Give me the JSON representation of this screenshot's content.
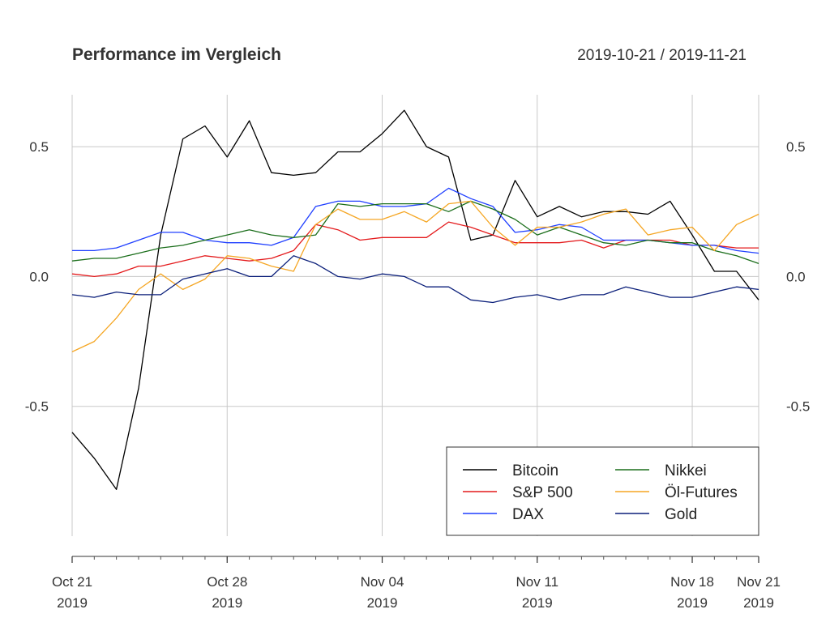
{
  "chart_data": {
    "type": "line",
    "title": "Performance im Vergleich",
    "date_range": "2019-10-21 / 2019-11-21",
    "xlim": [
      "2019-10-21",
      "2019-11-21"
    ],
    "ylim": [
      -1.0,
      0.7
    ],
    "y_ticks": [
      {
        "value": 0.5,
        "label": "0.5"
      },
      {
        "value": 0.0,
        "label": "0.0"
      },
      {
        "value": -0.5,
        "label": "-0.5"
      }
    ],
    "x_ticks": [
      {
        "date": "2019-10-21",
        "line1": "Oct 21",
        "line2": "2019"
      },
      {
        "date": "2019-10-28",
        "line1": "Oct 28",
        "line2": "2019"
      },
      {
        "date": "2019-11-04",
        "line1": "Nov 04",
        "line2": "2019"
      },
      {
        "date": "2019-11-11",
        "line1": "Nov 11",
        "line2": "2019"
      },
      {
        "date": "2019-11-18",
        "line1": "Nov 18",
        "line2": "2019"
      },
      {
        "date": "2019-11-21",
        "line1": "Nov 21",
        "line2": "2019"
      }
    ],
    "grid": true,
    "legend": {
      "position": "bottom-right",
      "columns": 2
    },
    "x": [
      "2019-10-21",
      "2019-10-22",
      "2019-10-23",
      "2019-10-24",
      "2019-10-25",
      "2019-10-26",
      "2019-10-27",
      "2019-10-28",
      "2019-10-29",
      "2019-10-30",
      "2019-10-31",
      "2019-11-01",
      "2019-11-02",
      "2019-11-03",
      "2019-11-04",
      "2019-11-05",
      "2019-11-06",
      "2019-11-07",
      "2019-11-08",
      "2019-11-09",
      "2019-11-10",
      "2019-11-11",
      "2019-11-12",
      "2019-11-13",
      "2019-11-14",
      "2019-11-15",
      "2019-11-16",
      "2019-11-17",
      "2019-11-18",
      "2019-11-19",
      "2019-11-20",
      "2019-11-21"
    ],
    "series": [
      {
        "name": "Bitcoin",
        "color": "#000000",
        "points": [
          [
            "2019-10-21",
            -0.6
          ],
          [
            "2019-10-22",
            -0.7
          ],
          [
            "2019-10-23",
            -0.82
          ],
          [
            "2019-10-24",
            -0.43
          ],
          [
            "2019-10-25",
            0.16
          ],
          [
            "2019-10-26",
            0.53
          ],
          [
            "2019-10-27",
            0.58
          ],
          [
            "2019-10-28",
            0.46
          ],
          [
            "2019-10-29",
            0.6
          ],
          [
            "2019-10-30",
            0.4
          ],
          [
            "2019-10-31",
            0.39
          ],
          [
            "2019-11-01",
            0.4
          ],
          [
            "2019-11-02",
            0.48
          ],
          [
            "2019-11-03",
            0.48
          ],
          [
            "2019-11-04",
            0.55
          ],
          [
            "2019-11-05",
            0.64
          ],
          [
            "2019-11-06",
            0.5
          ],
          [
            "2019-11-07",
            0.46
          ],
          [
            "2019-11-08",
            0.14
          ],
          [
            "2019-11-09",
            0.16
          ],
          [
            "2019-11-10",
            0.37
          ],
          [
            "2019-11-11",
            0.23
          ],
          [
            "2019-11-12",
            0.27
          ],
          [
            "2019-11-13",
            0.23
          ],
          [
            "2019-11-14",
            0.25
          ],
          [
            "2019-11-15",
            0.25
          ],
          [
            "2019-11-16",
            0.24
          ],
          [
            "2019-11-17",
            0.29
          ],
          [
            "2019-11-18",
            0.16
          ],
          [
            "2019-11-19",
            0.02
          ],
          [
            "2019-11-20",
            0.02
          ],
          [
            "2019-11-21",
            -0.09
          ]
        ]
      },
      {
        "name": "S&P 500",
        "color": "#e41a1c",
        "points": [
          [
            "2019-10-21",
            0.01
          ],
          [
            "2019-10-22",
            0.0
          ],
          [
            "2019-10-23",
            0.01
          ],
          [
            "2019-10-24",
            0.04
          ],
          [
            "2019-10-25",
            0.04
          ],
          [
            "2019-10-26",
            0.06
          ],
          [
            "2019-10-27",
            0.08
          ],
          [
            "2019-10-28",
            0.07
          ],
          [
            "2019-10-29",
            0.06
          ],
          [
            "2019-10-30",
            0.07
          ],
          [
            "2019-10-31",
            0.1
          ],
          [
            "2019-11-01",
            0.2
          ],
          [
            "2019-11-02",
            0.18
          ],
          [
            "2019-11-03",
            0.14
          ],
          [
            "2019-11-04",
            0.15
          ],
          [
            "2019-11-05",
            0.15
          ],
          [
            "2019-11-06",
            0.15
          ],
          [
            "2019-11-07",
            0.21
          ],
          [
            "2019-11-08",
            0.19
          ],
          [
            "2019-11-09",
            0.16
          ],
          [
            "2019-11-10",
            0.13
          ],
          [
            "2019-11-11",
            0.13
          ],
          [
            "2019-11-12",
            0.13
          ],
          [
            "2019-11-13",
            0.14
          ],
          [
            "2019-11-14",
            0.11
          ],
          [
            "2019-11-15",
            0.14
          ],
          [
            "2019-11-16",
            0.14
          ],
          [
            "2019-11-17",
            0.14
          ],
          [
            "2019-11-18",
            0.12
          ],
          [
            "2019-11-19",
            0.12
          ],
          [
            "2019-11-20",
            0.11
          ],
          [
            "2019-11-21",
            0.11
          ]
        ]
      },
      {
        "name": "DAX",
        "color": "#1f3fff",
        "points": [
          [
            "2019-10-21",
            0.1
          ],
          [
            "2019-10-22",
            0.1
          ],
          [
            "2019-10-23",
            0.11
          ],
          [
            "2019-10-24",
            0.14
          ],
          [
            "2019-10-25",
            0.17
          ],
          [
            "2019-10-26",
            0.17
          ],
          [
            "2019-10-27",
            0.14
          ],
          [
            "2019-10-28",
            0.13
          ],
          [
            "2019-10-29",
            0.13
          ],
          [
            "2019-10-30",
            0.12
          ],
          [
            "2019-10-31",
            0.15
          ],
          [
            "2019-11-01",
            0.27
          ],
          [
            "2019-11-02",
            0.29
          ],
          [
            "2019-11-03",
            0.29
          ],
          [
            "2019-11-04",
            0.27
          ],
          [
            "2019-11-05",
            0.27
          ],
          [
            "2019-11-06",
            0.28
          ],
          [
            "2019-11-07",
            0.34
          ],
          [
            "2019-11-08",
            0.3
          ],
          [
            "2019-11-09",
            0.27
          ],
          [
            "2019-11-10",
            0.17
          ],
          [
            "2019-11-11",
            0.18
          ],
          [
            "2019-11-12",
            0.2
          ],
          [
            "2019-11-13",
            0.19
          ],
          [
            "2019-11-14",
            0.14
          ],
          [
            "2019-11-15",
            0.14
          ],
          [
            "2019-11-16",
            0.14
          ],
          [
            "2019-11-17",
            0.13
          ],
          [
            "2019-11-18",
            0.12
          ],
          [
            "2019-11-19",
            0.12
          ],
          [
            "2019-11-20",
            0.1
          ],
          [
            "2019-11-21",
            0.09
          ]
        ]
      },
      {
        "name": "Nikkei",
        "color": "#1b6e1b",
        "points": [
          [
            "2019-10-21",
            0.06
          ],
          [
            "2019-10-22",
            0.07
          ],
          [
            "2019-10-23",
            0.07
          ],
          [
            "2019-10-24",
            0.09
          ],
          [
            "2019-10-25",
            0.11
          ],
          [
            "2019-10-26",
            0.12
          ],
          [
            "2019-10-27",
            0.14
          ],
          [
            "2019-10-28",
            0.16
          ],
          [
            "2019-10-29",
            0.18
          ],
          [
            "2019-10-30",
            0.16
          ],
          [
            "2019-10-31",
            0.15
          ],
          [
            "2019-11-01",
            0.16
          ],
          [
            "2019-11-02",
            0.28
          ],
          [
            "2019-11-03",
            0.27
          ],
          [
            "2019-11-04",
            0.28
          ],
          [
            "2019-11-05",
            0.28
          ],
          [
            "2019-11-06",
            0.28
          ],
          [
            "2019-11-07",
            0.25
          ],
          [
            "2019-11-08",
            0.29
          ],
          [
            "2019-11-09",
            0.26
          ],
          [
            "2019-11-10",
            0.22
          ],
          [
            "2019-11-11",
            0.16
          ],
          [
            "2019-11-12",
            0.19
          ],
          [
            "2019-11-13",
            0.16
          ],
          [
            "2019-11-14",
            0.13
          ],
          [
            "2019-11-15",
            0.12
          ],
          [
            "2019-11-16",
            0.14
          ],
          [
            "2019-11-17",
            0.13
          ],
          [
            "2019-11-18",
            0.13
          ],
          [
            "2019-11-19",
            0.1
          ],
          [
            "2019-11-20",
            0.08
          ],
          [
            "2019-11-21",
            0.05
          ]
        ]
      },
      {
        "name": "Öl-Futures",
        "color": "#f5a623",
        "points": [
          [
            "2019-10-21",
            -0.29
          ],
          [
            "2019-10-22",
            -0.25
          ],
          [
            "2019-10-23",
            -0.16
          ],
          [
            "2019-10-24",
            -0.05
          ],
          [
            "2019-10-25",
            0.01
          ],
          [
            "2019-10-26",
            -0.05
          ],
          [
            "2019-10-27",
            -0.01
          ],
          [
            "2019-10-28",
            0.08
          ],
          [
            "2019-10-29",
            0.07
          ],
          [
            "2019-10-30",
            0.04
          ],
          [
            "2019-10-31",
            0.02
          ],
          [
            "2019-11-01",
            0.2
          ],
          [
            "2019-11-02",
            0.26
          ],
          [
            "2019-11-03",
            0.22
          ],
          [
            "2019-11-04",
            0.22
          ],
          [
            "2019-11-05",
            0.25
          ],
          [
            "2019-11-06",
            0.21
          ],
          [
            "2019-11-07",
            0.28
          ],
          [
            "2019-11-08",
            0.29
          ],
          [
            "2019-11-09",
            0.19
          ],
          [
            "2019-11-10",
            0.12
          ],
          [
            "2019-11-11",
            0.19
          ],
          [
            "2019-11-12",
            0.19
          ],
          [
            "2019-11-13",
            0.21
          ],
          [
            "2019-11-14",
            0.24
          ],
          [
            "2019-11-15",
            0.26
          ],
          [
            "2019-11-16",
            0.16
          ],
          [
            "2019-11-17",
            0.18
          ],
          [
            "2019-11-18",
            0.19
          ],
          [
            "2019-11-19",
            0.1
          ],
          [
            "2019-11-20",
            0.2
          ],
          [
            "2019-11-21",
            0.24
          ]
        ]
      },
      {
        "name": "Gold",
        "color": "#0b1f7a",
        "points": [
          [
            "2019-10-21",
            -0.07
          ],
          [
            "2019-10-22",
            -0.08
          ],
          [
            "2019-10-23",
            -0.06
          ],
          [
            "2019-10-24",
            -0.07
          ],
          [
            "2019-10-25",
            -0.07
          ],
          [
            "2019-10-26",
            -0.01
          ],
          [
            "2019-10-27",
            0.01
          ],
          [
            "2019-10-28",
            0.03
          ],
          [
            "2019-10-29",
            0.0
          ],
          [
            "2019-10-30",
            0.0
          ],
          [
            "2019-10-31",
            0.08
          ],
          [
            "2019-11-01",
            0.05
          ],
          [
            "2019-11-02",
            0.0
          ],
          [
            "2019-11-03",
            -0.01
          ],
          [
            "2019-11-04",
            0.01
          ],
          [
            "2019-11-05",
            0.0
          ],
          [
            "2019-11-06",
            -0.04
          ],
          [
            "2019-11-07",
            -0.04
          ],
          [
            "2019-11-08",
            -0.09
          ],
          [
            "2019-11-09",
            -0.1
          ],
          [
            "2019-11-10",
            -0.08
          ],
          [
            "2019-11-11",
            -0.07
          ],
          [
            "2019-11-12",
            -0.09
          ],
          [
            "2019-11-13",
            -0.07
          ],
          [
            "2019-11-14",
            -0.07
          ],
          [
            "2019-11-15",
            -0.04
          ],
          [
            "2019-11-16",
            -0.06
          ],
          [
            "2019-11-17",
            -0.08
          ],
          [
            "2019-11-18",
            -0.08
          ],
          [
            "2019-11-19",
            -0.06
          ],
          [
            "2019-11-20",
            -0.04
          ],
          [
            "2019-11-21",
            -0.05
          ]
        ]
      }
    ]
  }
}
